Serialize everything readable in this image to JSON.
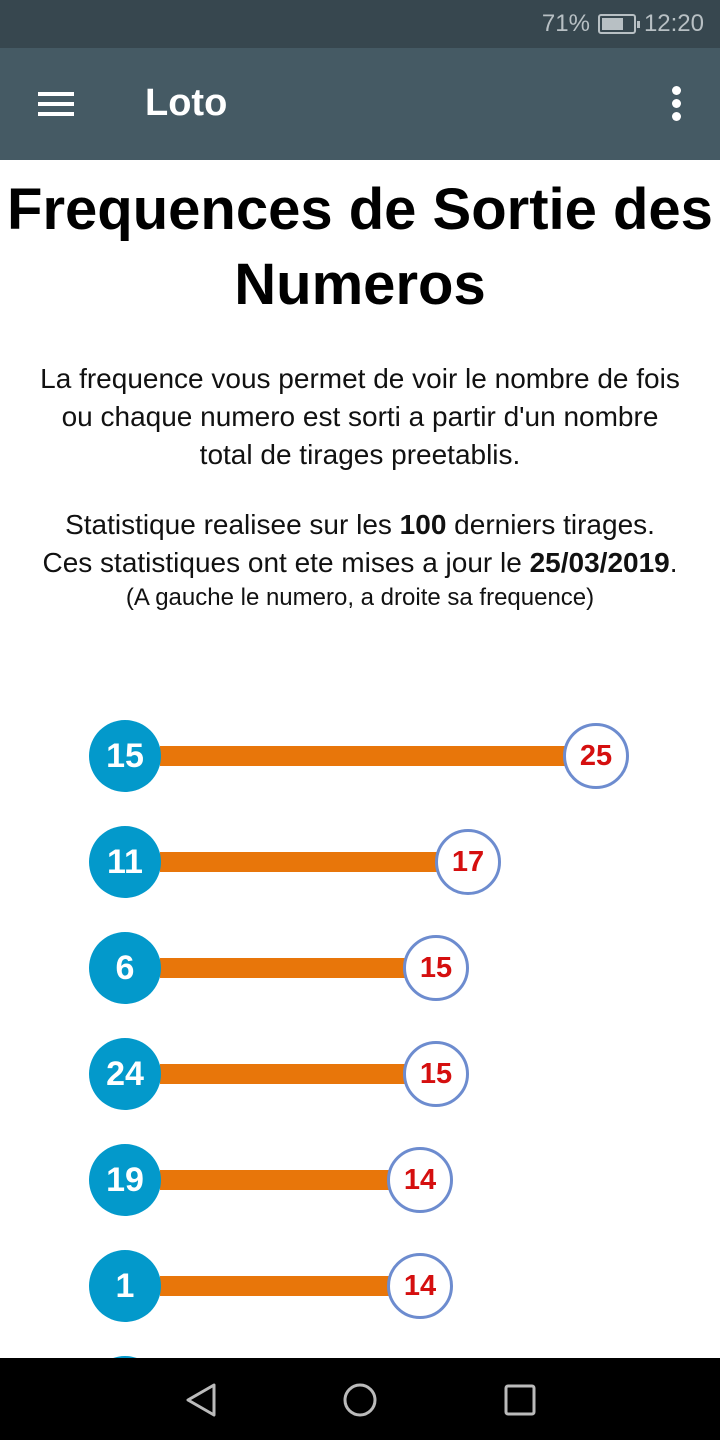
{
  "status_bar": {
    "battery": "71%",
    "time": "12:20"
  },
  "app_bar": {
    "title": "Loto"
  },
  "page": {
    "title": "Frequences de Sortie des Numeros",
    "description": "La frequence vous permet de voir le nombre de fois ou chaque numero est sorti a partir d'un nombre total de tirages preetablis.",
    "stats_prefix": "Statistique realisee sur les ",
    "stats_count": "100",
    "stats_suffix": " derniers tirages.",
    "update_prefix": "Ces statistiques ont ete mises a jour le ",
    "update_date": "25/03/2019",
    "update_suffix": ".",
    "note": "(A gauche le numero, a droite sa frequence)"
  },
  "chart_data": {
    "type": "bar",
    "orientation": "horizontal",
    "categories": [
      "15",
      "11",
      "6",
      "24",
      "19",
      "1"
    ],
    "values": [
      25,
      17,
      15,
      15,
      14,
      14
    ],
    "colors": {
      "number": "#0399cb",
      "bar": "#e8760a",
      "frequency_text": "#d50f0f",
      "frequency_border": "#6d8ccf"
    }
  }
}
